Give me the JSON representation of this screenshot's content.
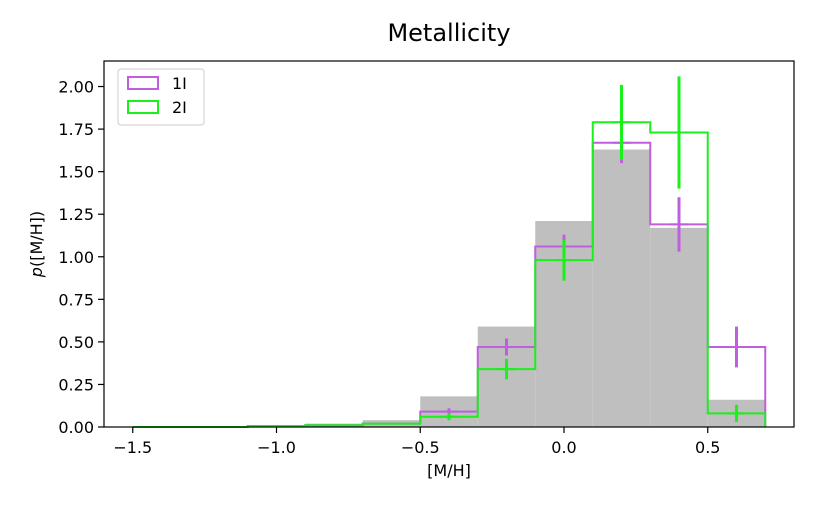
{
  "chart_data": {
    "type": "bar",
    "title": "Metallicity",
    "xlabel": "[M/H]",
    "ylabel": "p([M/H])",
    "xlim": [
      -1.6,
      0.8
    ],
    "ylim": [
      0,
      2.15
    ],
    "xticks": [
      -1.5,
      -1.0,
      -0.5,
      0.0,
      0.5
    ],
    "xtick_labels": [
      "−1.5",
      "−1.0",
      "−0.5",
      "0.0",
      "0.5"
    ],
    "yticks": [
      0,
      0.25,
      0.5,
      0.75,
      1.0,
      1.25,
      1.5,
      1.75,
      2.0
    ],
    "ytick_labels": [
      "0.00",
      "0.25",
      "0.50",
      "0.75",
      "1.00",
      "1.25",
      "1.50",
      "1.75",
      "2.00"
    ],
    "grid": false,
    "legend_position": "top-left",
    "bin_edges": [
      -1.5,
      -1.3,
      -1.1,
      -0.9,
      -0.7,
      -0.5,
      -0.3,
      -0.1,
      0.1,
      0.3,
      0.5,
      0.7
    ],
    "background": {
      "color": "#bfbfbf",
      "values": [
        0.0,
        0.0,
        0.005,
        0.02,
        0.04,
        0.18,
        0.59,
        1.21,
        1.63,
        1.17,
        0.16
      ]
    },
    "series": [
      {
        "name": "1I",
        "color": "#bf5fdf",
        "values": [
          0.0,
          0.0,
          0.005,
          0.01,
          0.02,
          0.09,
          0.47,
          1.06,
          1.67,
          1.19,
          0.47
        ],
        "errorbars": [
          {
            "x": -0.4,
            "y": 0.09,
            "err": 0.02
          },
          {
            "x": -0.2,
            "y": 0.47,
            "err": 0.05
          },
          {
            "x": 0.0,
            "y": 1.06,
            "err": 0.07
          },
          {
            "x": 0.2,
            "y": 1.67,
            "err": 0.12
          },
          {
            "x": 0.4,
            "y": 1.19,
            "err": 0.16
          },
          {
            "x": 0.6,
            "y": 0.47,
            "err": 0.12
          }
        ]
      },
      {
        "name": "2I",
        "color": "#1af01a",
        "values": [
          0.0,
          0.0,
          0.005,
          0.01,
          0.02,
          0.06,
          0.34,
          0.98,
          1.79,
          1.73,
          0.08
        ],
        "errorbars": [
          {
            "x": -0.4,
            "y": 0.06,
            "err": 0.02
          },
          {
            "x": -0.2,
            "y": 0.34,
            "err": 0.06
          },
          {
            "x": 0.0,
            "y": 0.98,
            "err": 0.12
          },
          {
            "x": 0.2,
            "y": 1.79,
            "err": 0.22
          },
          {
            "x": 0.4,
            "y": 1.73,
            "err": 0.33
          },
          {
            "x": 0.6,
            "y": 0.08,
            "err": 0.05
          }
        ]
      }
    ]
  }
}
